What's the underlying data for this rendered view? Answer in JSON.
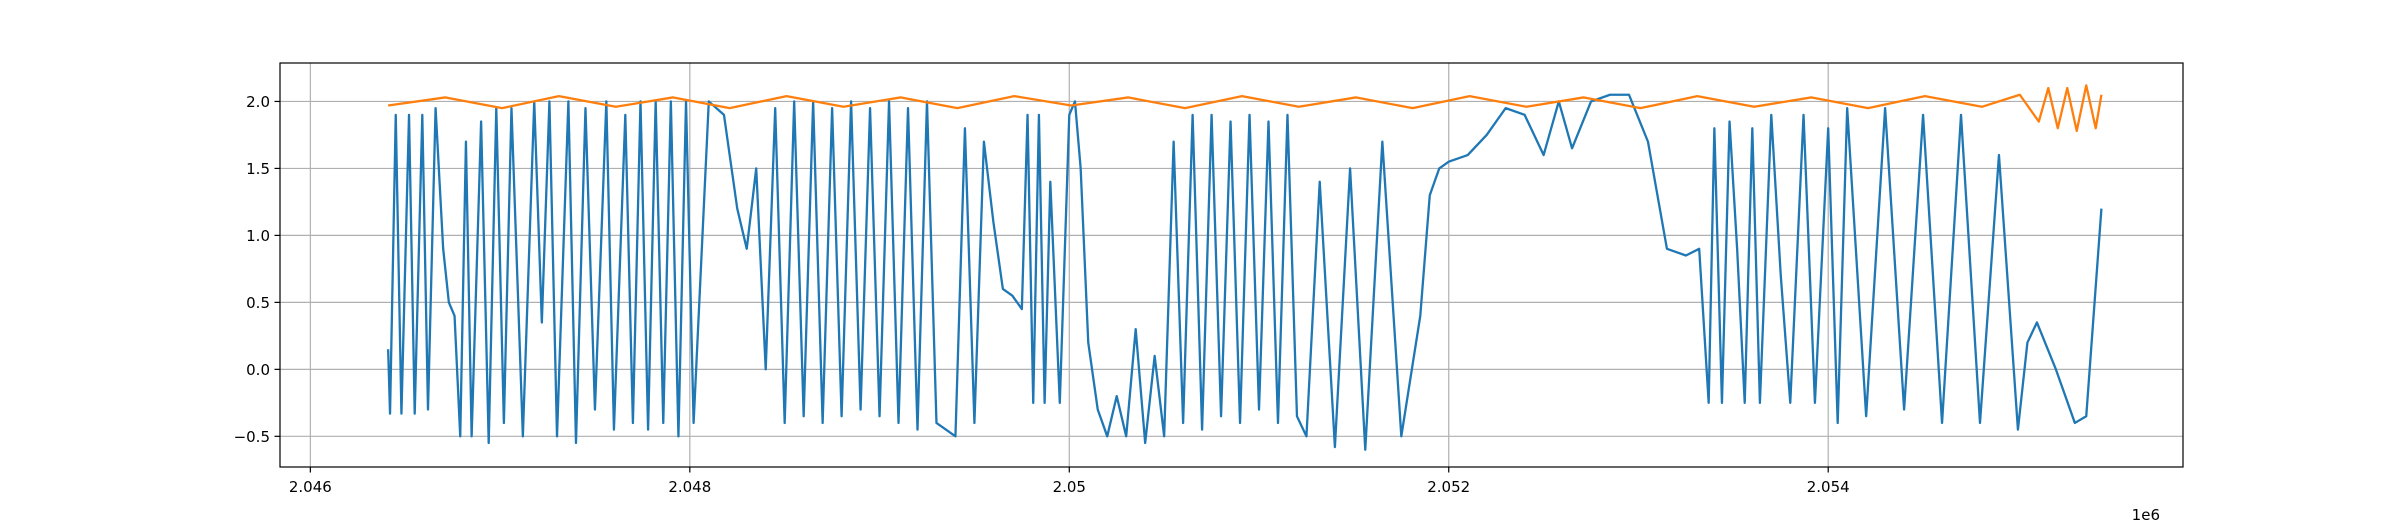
{
  "chart_data": {
    "type": "line",
    "x_offset_label": "1e6",
    "xlim": [
      2.04584,
      2.05587
    ],
    "ylim": [
      -0.729,
      2.287
    ],
    "xticks": [
      2.046,
      2.048,
      2.05,
      2.052,
      2.054
    ],
    "yticks": [
      {
        "value": -0.5,
        "label": "−0.5"
      },
      {
        "value": 0,
        "label": "0.0"
      },
      {
        "value": 0.5,
        "label": "0.5"
      },
      {
        "value": 1,
        "label": "1.0"
      },
      {
        "value": 1.5,
        "label": "1.5"
      },
      {
        "value": 2,
        "label": "2.0"
      }
    ],
    "grid": true,
    "series": [
      {
        "color": "#1f77b4",
        "x": [
          2.04641,
          2.04642,
          2.04645,
          2.04648,
          2.04652,
          2.04655,
          2.04659,
          2.04662,
          2.04666,
          2.0467,
          2.04673,
          2.04676,
          2.04679,
          2.04682,
          2.04685,
          2.0469,
          2.04694,
          2.04698,
          2.04702,
          2.04706,
          2.04712,
          2.04718,
          2.04722,
          2.04726,
          2.0473,
          2.04736,
          2.0474,
          2.04745,
          2.0475,
          2.04756,
          2.0476,
          2.04766,
          2.0477,
          2.04774,
          2.04778,
          2.04782,
          2.04786,
          2.0479,
          2.04794,
          2.04798,
          2.04802,
          2.0481,
          2.04818,
          2.04825,
          2.0483,
          2.04835,
          2.0484,
          2.04845,
          2.0485,
          2.04855,
          2.0486,
          2.04865,
          2.0487,
          2.04875,
          2.0488,
          2.04885,
          2.0489,
          2.04895,
          2.049,
          2.04905,
          2.0491,
          2.04915,
          2.0492,
          2.04925,
          2.0493,
          2.0494,
          2.04945,
          2.0495,
          2.04955,
          2.0496,
          2.04965,
          2.0497,
          2.04975,
          2.04978,
          2.04981,
          2.04984,
          2.04987,
          2.0499,
          2.04995,
          2.05,
          2.05003,
          2.05006,
          2.0501,
          2.05015,
          2.0502,
          2.05025,
          2.0503,
          2.05035,
          2.0504,
          2.05045,
          2.0505,
          2.05055,
          2.0506,
          2.05065,
          2.0507,
          2.05075,
          2.0508,
          2.05085,
          2.0509,
          2.05095,
          2.051,
          2.05105,
          2.0511,
          2.05115,
          2.0512,
          2.05125,
          2.05132,
          2.0514,
          2.05148,
          2.05156,
          2.05165,
          2.05175,
          2.05185,
          2.0519,
          2.05195,
          2.052,
          2.0521,
          2.0522,
          2.0523,
          2.0524,
          2.0525,
          2.05258,
          2.05265,
          2.05275,
          2.05285,
          2.05295,
          2.05305,
          2.05315,
          2.05325,
          2.05332,
          2.05337,
          2.0534,
          2.05344,
          2.05348,
          2.05352,
          2.05356,
          2.0536,
          2.05364,
          2.0537,
          2.05375,
          2.0538,
          2.05387,
          2.05393,
          2.054,
          2.05405,
          2.0541,
          2.0542,
          2.0543,
          2.0544,
          2.0545,
          2.0546,
          2.0547,
          2.0548,
          2.0549,
          2.055,
          2.05505,
          2.0551,
          2.0552,
          2.0553,
          2.05536,
          2.05544
        ],
        "values": [
          0.15,
          -0.33,
          1.9,
          -0.33,
          1.9,
          -0.33,
          1.9,
          -0.3,
          1.95,
          0.9,
          0.5,
          0.4,
          -0.5,
          1.7,
          -0.5,
          1.85,
          -0.55,
          1.95,
          -0.4,
          1.95,
          -0.5,
          2.0,
          0.35,
          2.0,
          -0.5,
          2.0,
          -0.55,
          1.95,
          -0.3,
          2.0,
          -0.45,
          1.9,
          -0.4,
          2.0,
          -0.45,
          2.0,
          -0.4,
          2.0,
          -0.5,
          2.0,
          -0.4,
          2.0,
          1.9,
          1.2,
          0.9,
          1.5,
          0.0,
          1.95,
          -0.4,
          2.0,
          -0.35,
          2.0,
          -0.4,
          1.95,
          -0.35,
          2.0,
          -0.3,
          1.95,
          -0.35,
          2.0,
          -0.4,
          1.95,
          -0.45,
          2.0,
          -0.4,
          -0.5,
          1.8,
          -0.4,
          1.7,
          1.1,
          0.6,
          0.55,
          0.45,
          1.9,
          -0.25,
          1.9,
          -0.25,
          1.4,
          -0.25,
          1.9,
          2.0,
          1.5,
          0.2,
          -0.3,
          -0.5,
          -0.2,
          -0.5,
          0.3,
          -0.55,
          0.1,
          -0.5,
          1.7,
          -0.4,
          1.9,
          -0.45,
          1.9,
          -0.35,
          1.85,
          -0.4,
          1.9,
          -0.3,
          1.85,
          -0.4,
          1.9,
          -0.35,
          -0.5,
          1.4,
          -0.58,
          1.5,
          -0.6,
          1.7,
          -0.5,
          0.4,
          1.3,
          1.5,
          1.55,
          1.6,
          1.75,
          1.95,
          1.9,
          1.6,
          2.0,
          1.65,
          2.0,
          2.05,
          2.05,
          1.7,
          0.9,
          0.85,
          0.9,
          -0.25,
          1.8,
          -0.25,
          1.85,
          0.9,
          -0.25,
          1.8,
          -0.25,
          1.9,
          0.7,
          -0.25,
          1.9,
          -0.25,
          1.8,
          -0.4,
          1.95,
          -0.35,
          1.95,
          -0.3,
          1.9,
          -0.4,
          1.9,
          -0.4,
          1.6,
          -0.45,
          0.2,
          0.35,
          0.0,
          -0.4,
          -0.35,
          1.2
        ]
      },
      {
        "color": "#ff7f0e",
        "x": [
          2.04641,
          2.04671,
          2.04701,
          2.04731,
          2.04761,
          2.04791,
          2.04821,
          2.04851,
          2.04881,
          2.04911,
          2.04941,
          2.04971,
          2.05001,
          2.05031,
          2.05061,
          2.05091,
          2.05121,
          2.05151,
          2.05181,
          2.05211,
          2.05241,
          2.05271,
          2.05301,
          2.05331,
          2.05361,
          2.05391,
          2.05421,
          2.05451,
          2.05481,
          2.05501,
          2.05511,
          2.05516,
          2.05521,
          2.05526,
          2.05531,
          2.05536,
          2.05541,
          2.05544
        ],
        "values": [
          1.97,
          2.03,
          1.95,
          2.04,
          1.96,
          2.03,
          1.95,
          2.04,
          1.96,
          2.03,
          1.95,
          2.04,
          1.97,
          2.03,
          1.95,
          2.04,
          1.96,
          2.03,
          1.95,
          2.04,
          1.96,
          2.03,
          1.95,
          2.04,
          1.96,
          2.03,
          1.95,
          2.04,
          1.96,
          2.05,
          1.85,
          2.1,
          1.8,
          2.1,
          1.78,
          2.12,
          1.8,
          2.05
        ]
      }
    ]
  }
}
